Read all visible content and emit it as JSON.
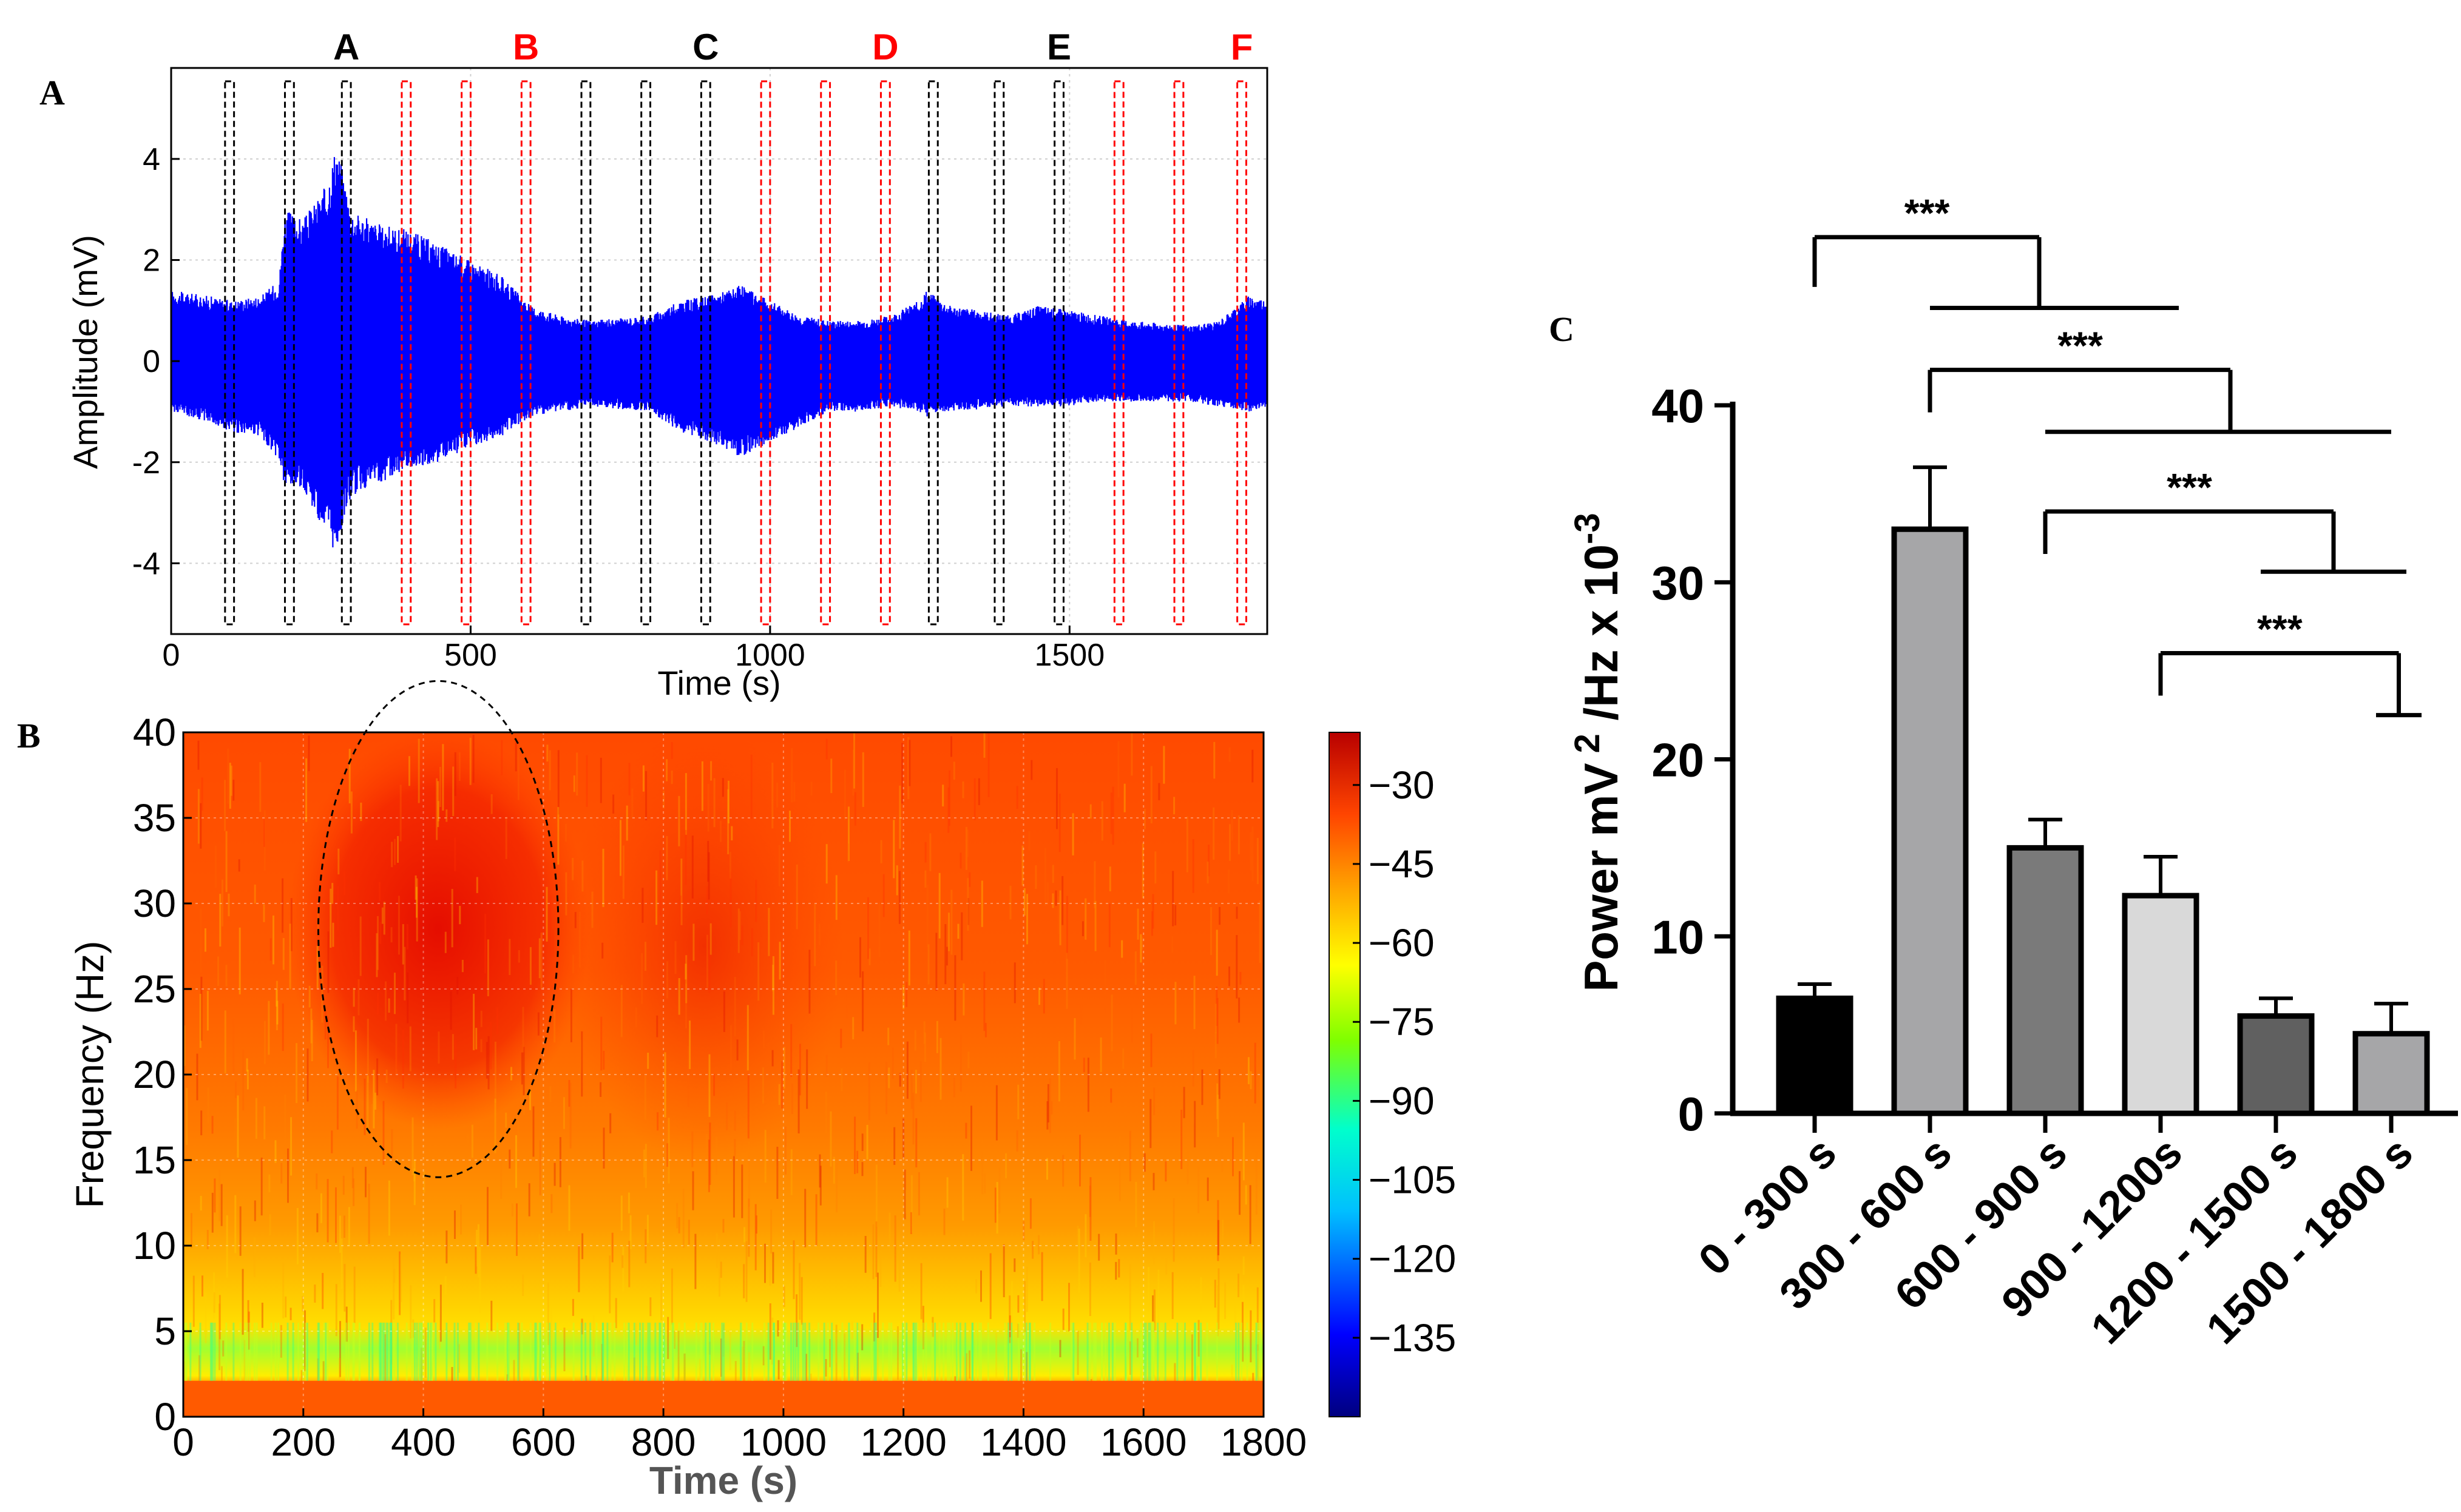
{
  "chart_data": [
    {
      "panel_label": "A",
      "type": "line",
      "title": "",
      "xlabel": "Time (s)",
      "ylabel": "Amplitude (mV)",
      "xlim": [
        0,
        1830
      ],
      "ylim": [
        -5.4,
        5.8
      ],
      "x_ticks": [
        0,
        500,
        1000,
        1500
      ],
      "y_ticks": [
        -4,
        -2,
        0,
        2,
        4
      ],
      "grid": true,
      "series_color": "#0000ff",
      "envelope_time_s": [
        0,
        60,
        100,
        150,
        180,
        190,
        220,
        260,
        275,
        285,
        300,
        350,
        400,
        450,
        500,
        550,
        600,
        650,
        700,
        800,
        850,
        900,
        950,
        1000,
        1050,
        1100,
        1150,
        1200,
        1250,
        1260,
        1300,
        1400,
        1450,
        1500,
        1550,
        1600,
        1700,
        1750,
        1800,
        1830
      ],
      "envelope_upper_mv": [
        1.4,
        1.3,
        1.2,
        1.3,
        1.6,
        3.0,
        2.8,
        3.5,
        4.3,
        3.9,
        3.0,
        2.7,
        2.6,
        2.3,
        2.0,
        1.7,
        1.1,
        0.9,
        0.8,
        0.9,
        1.2,
        1.3,
        1.5,
        1.2,
        0.9,
        0.8,
        0.8,
        0.9,
        1.2,
        1.4,
        1.1,
        0.9,
        1.1,
        1.0,
        0.9,
        0.8,
        0.7,
        0.8,
        1.3,
        1.2
      ],
      "envelope_lower_mv": [
        -1.0,
        -1.2,
        -1.4,
        -1.5,
        -2.0,
        -2.6,
        -2.5,
        -3.5,
        -3.9,
        -3.3,
        -2.7,
        -2.4,
        -2.1,
        -2.0,
        -1.7,
        -1.5,
        -1.1,
        -1.0,
        -0.9,
        -1.0,
        -1.4,
        -1.6,
        -1.9,
        -1.6,
        -1.3,
        -1.0,
        -1.0,
        -0.9,
        -1.0,
        -1.1,
        -1.0,
        -0.9,
        -0.9,
        -0.9,
        -0.8,
        -0.8,
        -0.8,
        -0.9,
        -1.0,
        -0.9
      ],
      "window_labels": [
        "A",
        "B",
        "C",
        "D",
        "E",
        "F"
      ],
      "window_label_colors": [
        "#000000",
        "#ff0000",
        "#000000",
        "#ff0000",
        "#000000",
        "#ff0000"
      ],
      "window_groups": [
        {
          "label": "A",
          "color": "#000000",
          "windows_s": [
            [
              90,
              105
            ],
            [
              190,
              205
            ],
            [
              285,
              300
            ]
          ]
        },
        {
          "label": "B",
          "color": "#ff0000",
          "windows_s": [
            [
              385,
              400
            ],
            [
              485,
              500
            ],
            [
              585,
              600
            ]
          ]
        },
        {
          "label": "C",
          "color": "#000000",
          "windows_s": [
            [
              685,
              700
            ],
            [
              785,
              800
            ],
            [
              885,
              900
            ]
          ]
        },
        {
          "label": "D",
          "color": "#ff0000",
          "windows_s": [
            [
              985,
              1000
            ],
            [
              1085,
              1100
            ],
            [
              1185,
              1200
            ]
          ]
        },
        {
          "label": "E",
          "color": "#000000",
          "windows_s": [
            [
              1265,
              1280
            ],
            [
              1375,
              1390
            ],
            [
              1475,
              1490
            ]
          ]
        },
        {
          "label": "F",
          "color": "#ff0000",
          "windows_s": [
            [
              1575,
              1590
            ],
            [
              1675,
              1690
            ],
            [
              1780,
              1795
            ]
          ]
        }
      ]
    },
    {
      "panel_label": "B",
      "type": "heatmap",
      "title": "",
      "xlabel": "Time (s)",
      "ylabel": "Frequency (Hz)",
      "xlim": [
        0,
        1800
      ],
      "ylim": [
        0,
        40
      ],
      "x_ticks": [
        0,
        200,
        400,
        600,
        800,
        1000,
        1200,
        1400,
        1600,
        1800
      ],
      "y_ticks": [
        0,
        5,
        10,
        15,
        20,
        25,
        30,
        35,
        40
      ],
      "colorbar_ticks": [
        -30,
        -45,
        -60,
        -75,
        -90,
        -105,
        -120,
        -135
      ],
      "colorbar_range": [
        -150,
        -20
      ],
      "colormap_stops": [
        "#00007f",
        "#0000ff",
        "#00bfff",
        "#00ffcc",
        "#7fff00",
        "#ffff00",
        "#ffa500",
        "#ff4500",
        "#cc0000"
      ],
      "annotation": "dashed ellipse marking high power, about 250-600 s and 14-43 Hz",
      "annotation_center": {
        "time_s": 425,
        "freq_hz": 28.5
      },
      "annotation_radius": {
        "time_s": 200,
        "freq_hz": 14.5
      }
    },
    {
      "panel_label": "C",
      "type": "bar",
      "title": "",
      "xlabel": "",
      "ylabel": "Power mV 2 /Hz x 10-3",
      "ylim": [
        0,
        40
      ],
      "y_ticks": [
        0,
        10,
        20,
        30,
        40
      ],
      "categories": [
        "0 - 300 s",
        "300 - 600 s",
        "600 - 900 s",
        "900 - 1200s",
        "1200 - 1500 s",
        "1500 - 1800 s"
      ],
      "values": [
        6.5,
        33.0,
        15.0,
        12.3,
        5.5,
        4.5
      ],
      "error": [
        0.8,
        3.5,
        1.6,
        2.2,
        1.0,
        1.7
      ],
      "bar_colors": [
        "#000000",
        "#a6a6a8",
        "#7a7a7a",
        "#d9d9d9",
        "#606060",
        "#a6a6a8"
      ],
      "significance": [
        {
          "label": "***",
          "from": "0 - 300 s",
          "to": [
            "300 - 600 s",
            "600 - 900 s",
            "900 - 1200s"
          ],
          "bracket_level": 49.5,
          "rail_level": 45.5
        },
        {
          "label": "***",
          "from": "300 - 600 s",
          "to": [
            "600 - 900 s",
            "900 - 1200s",
            "1200 - 1500 s",
            "1500 - 1800 s"
          ],
          "bracket_level": 42.0,
          "rail_level": 38.5
        },
        {
          "label": "***",
          "from": "600 - 900 s",
          "to": [
            "1200 - 1500 s",
            "1500 - 1800 s"
          ],
          "bracket_level": 34.0,
          "rail_level": 30.6
        },
        {
          "label": "***",
          "from": "900 - 1200s",
          "to": [
            "1500 - 1800 s"
          ],
          "bracket_level": 26.0,
          "rail_level": 22.5
        }
      ]
    }
  ]
}
